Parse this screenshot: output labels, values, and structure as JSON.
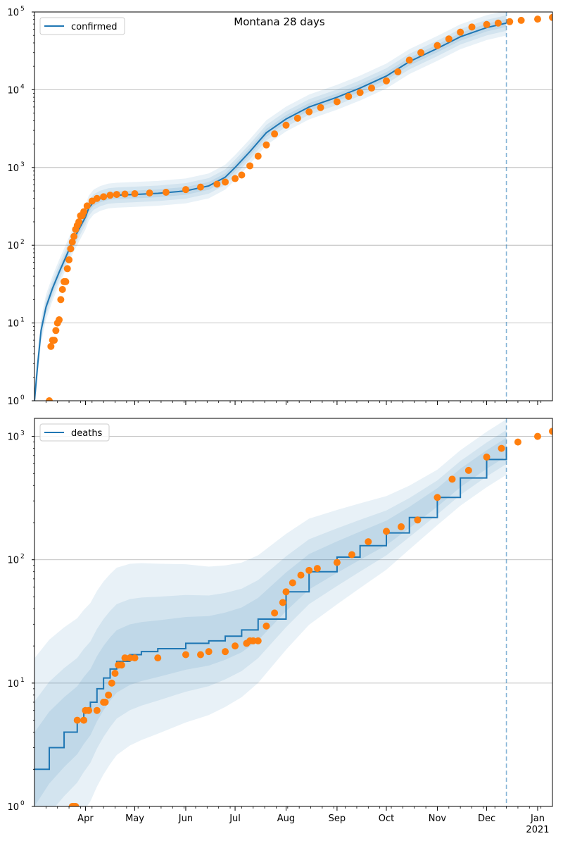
{
  "chart_data": [
    {
      "type": "line",
      "title": "Montana 28 days",
      "legend": {
        "entries": [
          "confirmed"
        ],
        "placement": "top-left"
      },
      "y_scale": "log",
      "ylim": [
        1,
        100000
      ],
      "y_ticks": [
        {
          "value": 1,
          "base": "10",
          "exp": "0"
        },
        {
          "value": 10,
          "base": "10",
          "exp": "1"
        },
        {
          "value": 100,
          "base": "10",
          "exp": "2"
        },
        {
          "value": 1000,
          "base": "10",
          "exp": "3"
        },
        {
          "value": 10000,
          "base": "10",
          "exp": "4"
        },
        {
          "value": 100000,
          "base": "10",
          "exp": "5"
        }
      ],
      "xlim": [
        "2020-03-01",
        "2021-01-10"
      ],
      "x_tick_labels": [],
      "grid": "horizontal",
      "forecast_start": "2020-12-13",
      "colors": {
        "model": "#1f77b4",
        "observed": "#ff7f0e",
        "band": "#1f77b4",
        "forecast_line": "#1f77b4"
      },
      "series": [
        {
          "name": "confirmed",
          "kind": "model-line",
          "x": [
            "2020-03-01",
            "2020-03-03",
            "2020-03-05",
            "2020-03-08",
            "2020-03-12",
            "2020-03-16",
            "2020-03-20",
            "2020-03-24",
            "2020-03-28",
            "2020-04-01",
            "2020-04-03",
            "2020-04-06",
            "2020-04-10",
            "2020-04-15",
            "2020-04-20",
            "2020-05-01",
            "2020-05-15",
            "2020-06-01",
            "2020-06-15",
            "2020-06-25",
            "2020-07-01",
            "2020-07-10",
            "2020-07-20",
            "2020-08-01",
            "2020-08-15",
            "2020-09-01",
            "2020-09-15",
            "2020-10-01",
            "2020-10-15",
            "2020-11-01",
            "2020-11-15",
            "2020-12-01",
            "2020-12-13"
          ],
          "y": [
            1,
            3,
            8,
            16,
            28,
            45,
            70,
            110,
            160,
            230,
            300,
            360,
            400,
            430,
            440,
            450,
            465,
            500,
            580,
            750,
            1000,
            1600,
            2800,
            4200,
            6000,
            8000,
            10500,
            15000,
            23000,
            34000,
            48000,
            63000,
            72000
          ]
        },
        {
          "name": "",
          "kind": "observed-points",
          "x": [
            "2020-03-10",
            "2020-03-11",
            "2020-03-12",
            "2020-03-13",
            "2020-03-14",
            "2020-03-15",
            "2020-03-16",
            "2020-03-17",
            "2020-03-18",
            "2020-03-19",
            "2020-03-20",
            "2020-03-21",
            "2020-03-22",
            "2020-03-23",
            "2020-03-24",
            "2020-03-25",
            "2020-03-26",
            "2020-03-27",
            "2020-03-28",
            "2020-03-29",
            "2020-03-30",
            "2020-03-31",
            "2020-04-02",
            "2020-04-05",
            "2020-04-08",
            "2020-04-12",
            "2020-04-16",
            "2020-04-20",
            "2020-04-25",
            "2020-05-01",
            "2020-05-10",
            "2020-05-20",
            "2020-06-01",
            "2020-06-10",
            "2020-06-20",
            "2020-06-25",
            "2020-07-01",
            "2020-07-05",
            "2020-07-10",
            "2020-07-15",
            "2020-07-20",
            "2020-07-25",
            "2020-08-01",
            "2020-08-08",
            "2020-08-15",
            "2020-08-22",
            "2020-09-01",
            "2020-09-08",
            "2020-09-15",
            "2020-09-22",
            "2020-10-01",
            "2020-10-08",
            "2020-10-15",
            "2020-10-22",
            "2020-11-01",
            "2020-11-08",
            "2020-11-15",
            "2020-11-22",
            "2020-12-01",
            "2020-12-08",
            "2020-12-15",
            "2020-12-22",
            "2021-01-01",
            "2021-01-10"
          ],
          "y": [
            1,
            5,
            6,
            6,
            8,
            10,
            11,
            20,
            27,
            34,
            34,
            50,
            65,
            90,
            110,
            130,
            160,
            180,
            200,
            240,
            240,
            270,
            320,
            370,
            400,
            420,
            440,
            450,
            455,
            460,
            470,
            480,
            520,
            560,
            610,
            650,
            720,
            800,
            1050,
            1400,
            1950,
            2700,
            3500,
            4300,
            5200,
            5900,
            7000,
            8200,
            9200,
            10500,
            13000,
            17000,
            24000,
            30000,
            37000,
            45000,
            55000,
            64000,
            69000,
            72000,
            75000,
            78000,
            81000,
            85000
          ]
        }
      ]
    },
    {
      "type": "line",
      "title": "",
      "legend": {
        "entries": [
          "deaths"
        ],
        "placement": "top-left"
      },
      "y_scale": "log",
      "ylim": [
        1,
        1400
      ],
      "y_ticks": [
        {
          "value": 1,
          "base": "10",
          "exp": "0"
        },
        {
          "value": 10,
          "base": "10",
          "exp": "1"
        },
        {
          "value": 100,
          "base": "10",
          "exp": "2"
        },
        {
          "value": 1000,
          "base": "10",
          "exp": "3"
        }
      ],
      "xlim": [
        "2020-03-01",
        "2021-01-10"
      ],
      "x_tick_labels": [
        {
          "date": "2020-04-01",
          "label": "Apr"
        },
        {
          "date": "2020-05-01",
          "label": "May"
        },
        {
          "date": "2020-06-01",
          "label": "Jun"
        },
        {
          "date": "2020-07-01",
          "label": "Jul"
        },
        {
          "date": "2020-08-01",
          "label": "Aug"
        },
        {
          "date": "2020-09-01",
          "label": "Sep"
        },
        {
          "date": "2020-10-01",
          "label": "Oct"
        },
        {
          "date": "2020-11-01",
          "label": "Nov"
        },
        {
          "date": "2020-12-01",
          "label": "Dec"
        },
        {
          "date": "2021-01-01",
          "label": "Jan"
        }
      ],
      "x_year_label": {
        "date": "2021-01-01",
        "label": "2021"
      },
      "grid": "horizontal",
      "forecast_start": "2020-12-13",
      "colors": {
        "model": "#1f77b4",
        "observed": "#ff7f0e",
        "band": "#1f77b4",
        "forecast_line": "#1f77b4"
      },
      "series": [
        {
          "name": "deaths",
          "kind": "model-step",
          "x": [
            "2020-03-01",
            "2020-03-10",
            "2020-03-19",
            "2020-03-27",
            "2020-03-31",
            "2020-04-04",
            "2020-04-08",
            "2020-04-12",
            "2020-04-16",
            "2020-04-20",
            "2020-04-28",
            "2020-05-05",
            "2020-05-15",
            "2020-06-01",
            "2020-06-15",
            "2020-06-25",
            "2020-07-05",
            "2020-07-15",
            "2020-08-01",
            "2020-08-15",
            "2020-09-01",
            "2020-09-15",
            "2020-10-01",
            "2020-10-15",
            "2020-11-01",
            "2020-11-15",
            "2020-12-01",
            "2020-12-13"
          ],
          "y": [
            2,
            3,
            4,
            5,
            6,
            7,
            9,
            11,
            13,
            15,
            17,
            18,
            19,
            21,
            22,
            24,
            27,
            33,
            55,
            80,
            105,
            130,
            165,
            220,
            320,
            460,
            650,
            820
          ]
        },
        {
          "name": "",
          "kind": "observed-points",
          "x": [
            "2020-03-24",
            "2020-03-25",
            "2020-03-26",
            "2020-03-27",
            "2020-03-31",
            "2020-04-01",
            "2020-04-03",
            "2020-04-08",
            "2020-04-12",
            "2020-04-13",
            "2020-04-15",
            "2020-04-17",
            "2020-04-19",
            "2020-04-21",
            "2020-04-23",
            "2020-04-25",
            "2020-04-28",
            "2020-05-01",
            "2020-05-15",
            "2020-06-01",
            "2020-06-10",
            "2020-06-15",
            "2020-06-25",
            "2020-07-01",
            "2020-07-08",
            "2020-07-10",
            "2020-07-12",
            "2020-07-15",
            "2020-07-20",
            "2020-07-25",
            "2020-07-30",
            "2020-08-01",
            "2020-08-05",
            "2020-08-10",
            "2020-08-15",
            "2020-08-20",
            "2020-09-01",
            "2020-09-10",
            "2020-09-20",
            "2020-10-01",
            "2020-10-10",
            "2020-10-20",
            "2020-11-01",
            "2020-11-10",
            "2020-11-20",
            "2020-12-01",
            "2020-12-10",
            "2020-12-20",
            "2021-01-01",
            "2021-01-10"
          ],
          "y": [
            1,
            1,
            1,
            5,
            5,
            6,
            6,
            6,
            7,
            7,
            8,
            10,
            12,
            14,
            14,
            16,
            16,
            16,
            16,
            17,
            17,
            18,
            18,
            20,
            21,
            22,
            22,
            22,
            29,
            37,
            45,
            55,
            65,
            75,
            82,
            85,
            95,
            110,
            140,
            170,
            185,
            210,
            320,
            450,
            530,
            680,
            800,
            900,
            1000,
            1100
          ]
        }
      ]
    }
  ]
}
